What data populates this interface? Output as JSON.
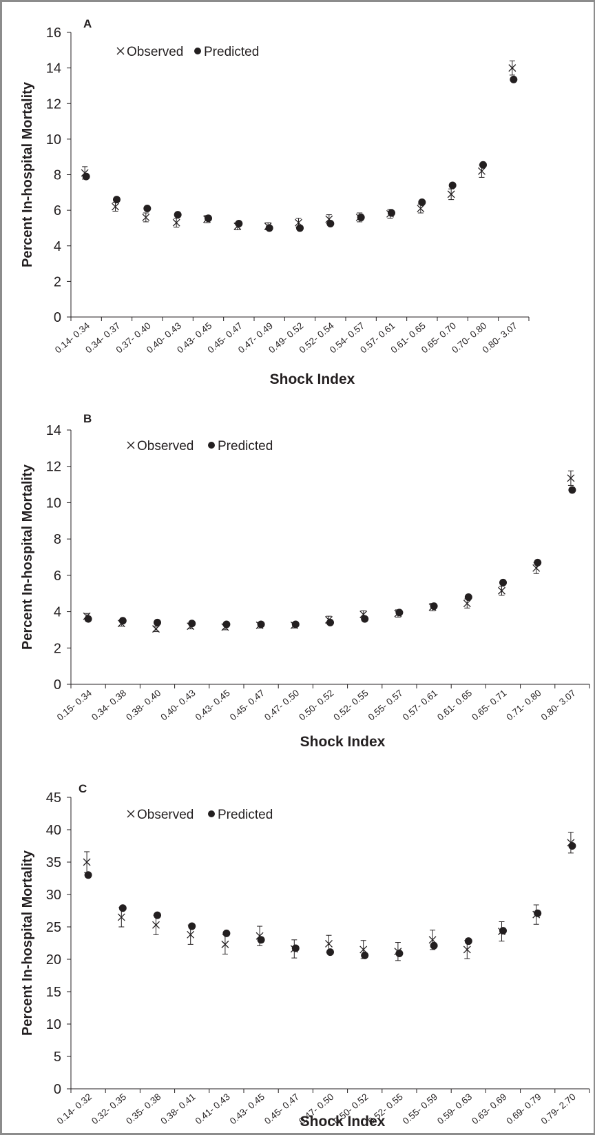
{
  "chart_data": [
    {
      "panel": "A",
      "type": "scatter",
      "xlabel": "Shock Index",
      "ylabel": "Percent  In-hospital Mortality",
      "ylim": [
        0,
        16
      ],
      "ytick_step": 2,
      "yticks": [
        "0",
        "2",
        "4",
        "6",
        "8",
        "10",
        "12",
        "14",
        "16"
      ],
      "categories": [
        "0.14- 0.34",
        "0.34- 0.37",
        "0.37- 0.40",
        "0.40- 0.43",
        "0.43- 0.45",
        "0.45- 0.47",
        "0.47- 0.49",
        "0.49- 0.52",
        "0.52- 0.54",
        "0.54- 0.57",
        "0.57- 0.61",
        "0.61- 0.65",
        "0.65- 0.70",
        "0.70- 0.80",
        "0.80- 3.07"
      ],
      "legend": {
        "observed": "Observed",
        "predicted": "Predicted",
        "position": "top-left"
      },
      "series": [
        {
          "name": "Observed",
          "marker": "x",
          "values": [
            8.1,
            6.2,
            5.6,
            5.3,
            5.5,
            5.1,
            5.1,
            5.3,
            5.5,
            5.6,
            5.8,
            6.1,
            6.9,
            8.2,
            14.0
          ],
          "error": [
            0.35,
            0.25,
            0.25,
            0.25,
            0.2,
            0.2,
            0.2,
            0.25,
            0.25,
            0.25,
            0.25,
            0.25,
            0.3,
            0.35,
            0.4
          ]
        },
        {
          "name": "Predicted",
          "marker": "dot",
          "values": [
            7.9,
            6.6,
            6.1,
            5.75,
            5.55,
            5.25,
            5.0,
            5.0,
            5.25,
            5.6,
            5.85,
            6.45,
            7.4,
            8.55,
            13.35
          ]
        }
      ]
    },
    {
      "panel": "B",
      "type": "scatter",
      "xlabel": "Shock Index",
      "ylabel": "Percent  In-hospital Mortality",
      "ylim": [
        0,
        14
      ],
      "ytick_step": 2,
      "yticks": [
        "0",
        "2",
        "4",
        "6",
        "8",
        "10",
        "12",
        "14"
      ],
      "categories": [
        "0.15- 0.34",
        "0.34- 0.38",
        "0.38- 0.40",
        "0.40- 0.43",
        "0.43- 0.45",
        "0.45- 0.47",
        "0.47- 0.50",
        "0.50- 0.52",
        "0.52- 0.55",
        "0.55- 0.57",
        "0.57- 0.61",
        "0.61- 0.65",
        "0.65- 0.71",
        "0.71- 0.80",
        "0.80- 3.07"
      ],
      "legend": {
        "observed": "Observed",
        "predicted": "Predicted",
        "position": "top-left"
      },
      "series": [
        {
          "name": "Observed",
          "marker": "x",
          "values": [
            3.75,
            3.35,
            3.05,
            3.2,
            3.15,
            3.25,
            3.25,
            3.55,
            3.85,
            3.9,
            4.25,
            4.45,
            5.15,
            6.4,
            11.35
          ],
          "error": [
            0.15,
            0.15,
            0.15,
            0.15,
            0.15,
            0.15,
            0.15,
            0.2,
            0.2,
            0.2,
            0.2,
            0.25,
            0.25,
            0.3,
            0.4
          ]
        },
        {
          "name": "Predicted",
          "marker": "dot",
          "values": [
            3.6,
            3.5,
            3.4,
            3.35,
            3.3,
            3.3,
            3.3,
            3.4,
            3.6,
            3.95,
            4.3,
            4.8,
            5.6,
            6.7,
            10.7
          ]
        }
      ]
    },
    {
      "panel": "C",
      "type": "scatter",
      "xlabel": "Shock Index",
      "ylabel": "Percent  In-hospital Mortality",
      "ylim": [
        0,
        45
      ],
      "ytick_step": 5,
      "yticks": [
        "0",
        "5",
        "10",
        "15",
        "20",
        "25",
        "30",
        "35",
        "40",
        "45"
      ],
      "categories": [
        "0.14- 0.32",
        "0.32- 0.35",
        "0.35- 0.38",
        "0.38- 0.41",
        "0.41- 0.43",
        "0.43- 0.45",
        "0.45- 0.47",
        "0.47- 0.50",
        "0.50- 0.52",
        "0.52- 0.55",
        "0.55- 0.59",
        "0.59- 0.63",
        "0.63- 0.69",
        "0.69- 0.79",
        "0.79- 2.70"
      ],
      "legend": {
        "observed": "Observed",
        "predicted": "Predicted",
        "position": "top-left"
      },
      "series": [
        {
          "name": "Observed",
          "marker": "x",
          "values": [
            35.0,
            26.5,
            25.3,
            23.8,
            22.3,
            23.6,
            21.6,
            22.4,
            21.5,
            21.2,
            23.0,
            21.5,
            24.3,
            26.9,
            38.0
          ],
          "error": [
            1.6,
            1.5,
            1.5,
            1.5,
            1.5,
            1.5,
            1.4,
            1.3,
            1.4,
            1.4,
            1.5,
            1.4,
            1.5,
            1.5,
            1.6
          ]
        },
        {
          "name": "Predicted",
          "marker": "dot",
          "values": [
            33.0,
            27.9,
            26.8,
            25.1,
            24.0,
            23.0,
            21.7,
            21.1,
            20.6,
            20.9,
            22.1,
            22.8,
            24.4,
            27.1,
            37.5
          ]
        }
      ]
    }
  ]
}
